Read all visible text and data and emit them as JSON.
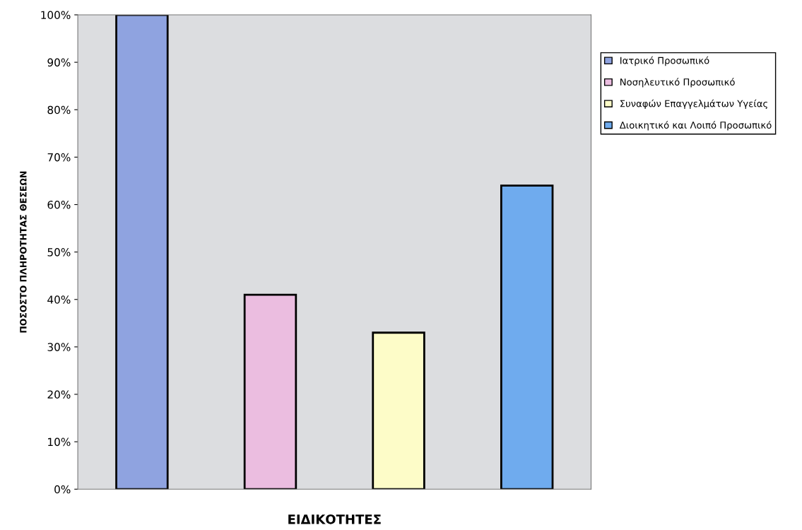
{
  "chart_data": {
    "type": "bar",
    "xlabel": "ΕΙΔΙΚΟΤΗΤΕΣ",
    "ylabel": "ΠΟΣΟΣΤΟ ΠΛΗΡΟΤΗΤΑΣ ΘΕΣΕΩΝ",
    "categories": [
      null,
      null,
      null,
      null
    ],
    "series": [
      {
        "name": "Ιατρικό Προσωπικό",
        "color": "#8fa3e0",
        "values": [
          100,
          null,
          null,
          null
        ]
      },
      {
        "name": "Νοσηλευτικό Προσωπικό",
        "color": "#ebbde0",
        "values": [
          null,
          41,
          null,
          null
        ]
      },
      {
        "name": "Συναφών Επαγγελμάτων Υγείας",
        "color": "#fdfcc8",
        "values": [
          null,
          null,
          33,
          null
        ]
      },
      {
        "name": "Διοικητικό και Λοιπό Προσωπικό",
        "color": "#6fabee",
        "values": [
          null,
          null,
          null,
          64
        ]
      }
    ],
    "ylim": [
      0,
      100
    ],
    "yticks": [
      {
        "value": 0,
        "label": "0%"
      },
      {
        "value": 10,
        "label": "10%"
      },
      {
        "value": 20,
        "label": "20%"
      },
      {
        "value": 30,
        "label": "30%"
      },
      {
        "value": 40,
        "label": "40%"
      },
      {
        "value": 50,
        "label": "50%"
      },
      {
        "value": 60,
        "label": "60%"
      },
      {
        "value": 70,
        "label": "70%"
      },
      {
        "value": 80,
        "label": "80%"
      },
      {
        "value": 90,
        "label": "90%"
      },
      {
        "value": 100,
        "label": "100%"
      }
    ],
    "grid": false,
    "legend": "right"
  }
}
